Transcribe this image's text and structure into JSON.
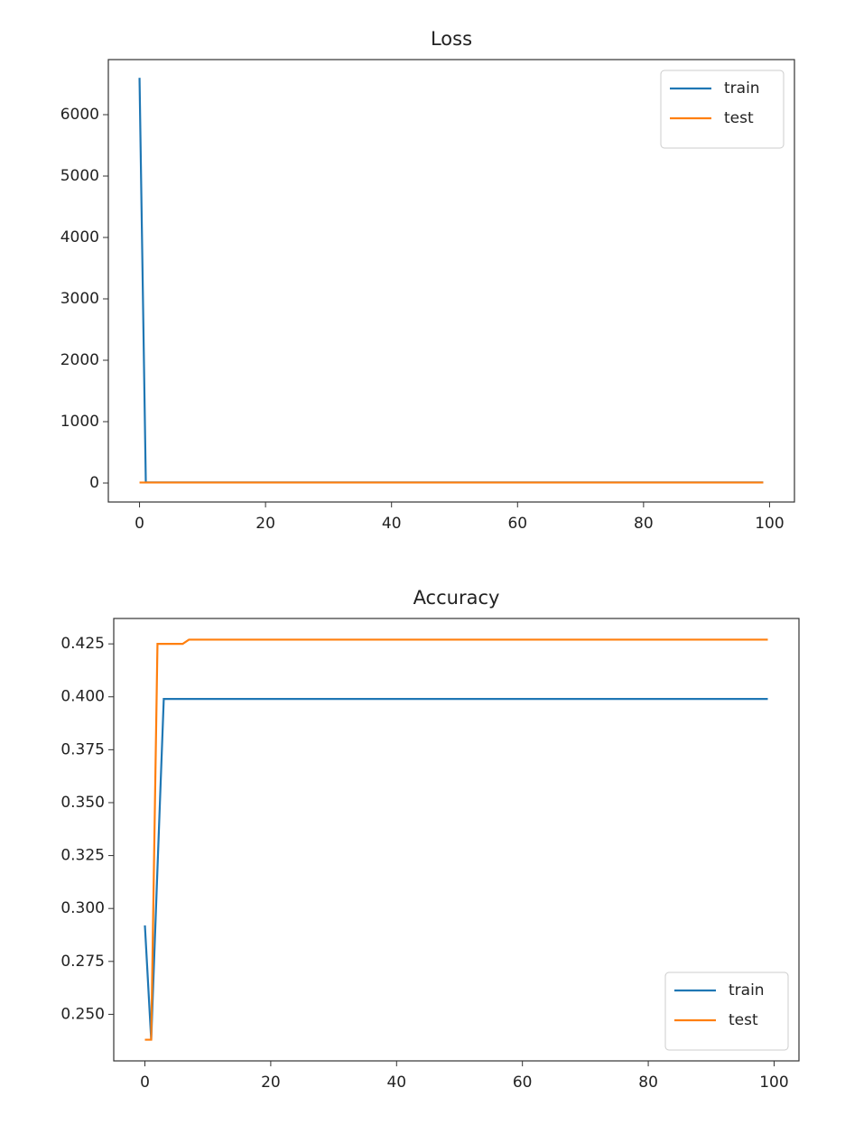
{
  "chart_data": [
    {
      "type": "line",
      "title": "Loss",
      "x": [
        0,
        1,
        2,
        3,
        4,
        5,
        6,
        7,
        8,
        9,
        10,
        11,
        12,
        13,
        14,
        15,
        16,
        17,
        18,
        19,
        20,
        21,
        22,
        23,
        24,
        25,
        26,
        27,
        28,
        29,
        30,
        31,
        32,
        33,
        34,
        35,
        36,
        37,
        38,
        39,
        40,
        41,
        42,
        43,
        44,
        45,
        46,
        47,
        48,
        49,
        50,
        51,
        52,
        53,
        54,
        55,
        56,
        57,
        58,
        59,
        60,
        61,
        62,
        63,
        64,
        65,
        66,
        67,
        68,
        69,
        70,
        71,
        72,
        73,
        74,
        75,
        76,
        77,
        78,
        79,
        80,
        81,
        82,
        83,
        84,
        85,
        86,
        87,
        88,
        89,
        90,
        91,
        92,
        93,
        94,
        95,
        96,
        97,
        98,
        99
      ],
      "series": [
        {
          "name": "train",
          "color": "#1f77b4",
          "values": [
            6600,
            10,
            10,
            10,
            10,
            10,
            10,
            10,
            10,
            10,
            10,
            10,
            10,
            10,
            10,
            10,
            10,
            10,
            10,
            10,
            10,
            10,
            10,
            10,
            10,
            10,
            10,
            10,
            10,
            10,
            10,
            10,
            10,
            10,
            10,
            10,
            10,
            10,
            10,
            10,
            10,
            10,
            10,
            10,
            10,
            10,
            10,
            10,
            10,
            10,
            10,
            10,
            10,
            10,
            10,
            10,
            10,
            10,
            10,
            10,
            10,
            10,
            10,
            10,
            10,
            10,
            10,
            10,
            10,
            10,
            10,
            10,
            10,
            10,
            10,
            10,
            10,
            10,
            10,
            10,
            10,
            10,
            10,
            10,
            10,
            10,
            10,
            10,
            10,
            10,
            10,
            10,
            10,
            10,
            10,
            10,
            10,
            10,
            10,
            10
          ]
        },
        {
          "name": "test",
          "color": "#ff7f0e",
          "values": [
            8,
            8,
            8,
            8,
            8,
            8,
            8,
            8,
            8,
            8,
            8,
            8,
            8,
            8,
            8,
            8,
            8,
            8,
            8,
            8,
            8,
            8,
            8,
            8,
            8,
            8,
            8,
            8,
            8,
            8,
            8,
            8,
            8,
            8,
            8,
            8,
            8,
            8,
            8,
            8,
            8,
            8,
            8,
            8,
            8,
            8,
            8,
            8,
            8,
            8,
            8,
            8,
            8,
            8,
            8,
            8,
            8,
            8,
            8,
            8,
            8,
            8,
            8,
            8,
            8,
            8,
            8,
            8,
            8,
            8,
            8,
            8,
            8,
            8,
            8,
            8,
            8,
            8,
            8,
            8,
            8,
            8,
            8,
            8,
            8,
            8,
            8,
            8,
            8,
            8,
            8,
            8,
            8,
            8,
            8,
            8,
            8,
            8,
            8,
            8
          ]
        }
      ],
      "xlim": [
        -4.95,
        103.95
      ],
      "xticks": [
        0,
        20,
        40,
        60,
        80,
        100
      ],
      "ylim": [
        -309,
        6897
      ],
      "yticks": [
        0,
        1000,
        2000,
        3000,
        4000,
        5000,
        6000
      ],
      "legend": "upper right"
    },
    {
      "type": "line",
      "title": "Accuracy",
      "x": [
        0,
        1,
        2,
        3,
        4,
        5,
        6,
        7,
        8,
        9,
        10,
        11,
        12,
        13,
        14,
        15,
        16,
        17,
        18,
        19,
        20,
        21,
        22,
        23,
        24,
        25,
        26,
        27,
        28,
        29,
        30,
        31,
        32,
        33,
        34,
        35,
        36,
        37,
        38,
        39,
        40,
        41,
        42,
        43,
        44,
        45,
        46,
        47,
        48,
        49,
        50,
        51,
        52,
        53,
        54,
        55,
        56,
        57,
        58,
        59,
        60,
        61,
        62,
        63,
        64,
        65,
        66,
        67,
        68,
        69,
        70,
        71,
        72,
        73,
        74,
        75,
        76,
        77,
        78,
        79,
        80,
        81,
        82,
        83,
        84,
        85,
        86,
        87,
        88,
        89,
        90,
        91,
        92,
        93,
        94,
        95,
        96,
        97,
        98,
        99
      ],
      "series": [
        {
          "name": "train",
          "color": "#1f77b4",
          "values": [
            0.292,
            0.238,
            0.319,
            0.399,
            0.399,
            0.399,
            0.399,
            0.399,
            0.399,
            0.399,
            0.399,
            0.399,
            0.399,
            0.399,
            0.399,
            0.399,
            0.399,
            0.399,
            0.399,
            0.399,
            0.399,
            0.399,
            0.399,
            0.399,
            0.399,
            0.399,
            0.399,
            0.399,
            0.399,
            0.399,
            0.399,
            0.399,
            0.399,
            0.399,
            0.399,
            0.399,
            0.399,
            0.399,
            0.399,
            0.399,
            0.399,
            0.399,
            0.399,
            0.399,
            0.399,
            0.399,
            0.399,
            0.399,
            0.399,
            0.399,
            0.399,
            0.399,
            0.399,
            0.399,
            0.399,
            0.399,
            0.399,
            0.399,
            0.399,
            0.399,
            0.399,
            0.399,
            0.399,
            0.399,
            0.399,
            0.399,
            0.399,
            0.399,
            0.399,
            0.399,
            0.399,
            0.399,
            0.399,
            0.399,
            0.399,
            0.399,
            0.399,
            0.399,
            0.399,
            0.399,
            0.399,
            0.399,
            0.399,
            0.399,
            0.399,
            0.399,
            0.399,
            0.399,
            0.399,
            0.399,
            0.399,
            0.399,
            0.399,
            0.399,
            0.399,
            0.399,
            0.399,
            0.399,
            0.399,
            0.399
          ]
        },
        {
          "name": "test",
          "color": "#ff7f0e",
          "values": [
            0.238,
            0.238,
            0.425,
            0.425,
            0.425,
            0.425,
            0.425,
            0.427,
            0.427,
            0.427,
            0.427,
            0.427,
            0.427,
            0.427,
            0.427,
            0.427,
            0.427,
            0.427,
            0.427,
            0.427,
            0.427,
            0.427,
            0.427,
            0.427,
            0.427,
            0.427,
            0.427,
            0.427,
            0.427,
            0.427,
            0.427,
            0.427,
            0.427,
            0.427,
            0.427,
            0.427,
            0.427,
            0.427,
            0.427,
            0.427,
            0.427,
            0.427,
            0.427,
            0.427,
            0.427,
            0.427,
            0.427,
            0.427,
            0.427,
            0.427,
            0.427,
            0.427,
            0.427,
            0.427,
            0.427,
            0.427,
            0.427,
            0.427,
            0.427,
            0.427,
            0.427,
            0.427,
            0.427,
            0.427,
            0.427,
            0.427,
            0.427,
            0.427,
            0.427,
            0.427,
            0.427,
            0.427,
            0.427,
            0.427,
            0.427,
            0.427,
            0.427,
            0.427,
            0.427,
            0.427,
            0.427,
            0.427,
            0.427,
            0.427,
            0.427,
            0.427,
            0.427,
            0.427,
            0.427,
            0.427,
            0.427,
            0.427,
            0.427,
            0.427,
            0.427,
            0.427,
            0.427,
            0.427,
            0.427,
            0.427
          ]
        }
      ],
      "xlim": [
        -4.95,
        103.95
      ],
      "xticks": [
        0,
        20,
        40,
        60,
        80,
        100
      ],
      "ylim": [
        0.228,
        0.437
      ],
      "yticks": [
        {
          "value": 0.25,
          "label": "0.250"
        },
        0.275,
        {
          "value": 0.3,
          "label": "0.300"
        },
        0.325,
        {
          "value": 0.35,
          "label": "0.350"
        },
        0.375,
        {
          "value": 0.4,
          "label": "0.400"
        },
        0.425
      ],
      "legend": "lower right"
    }
  ]
}
